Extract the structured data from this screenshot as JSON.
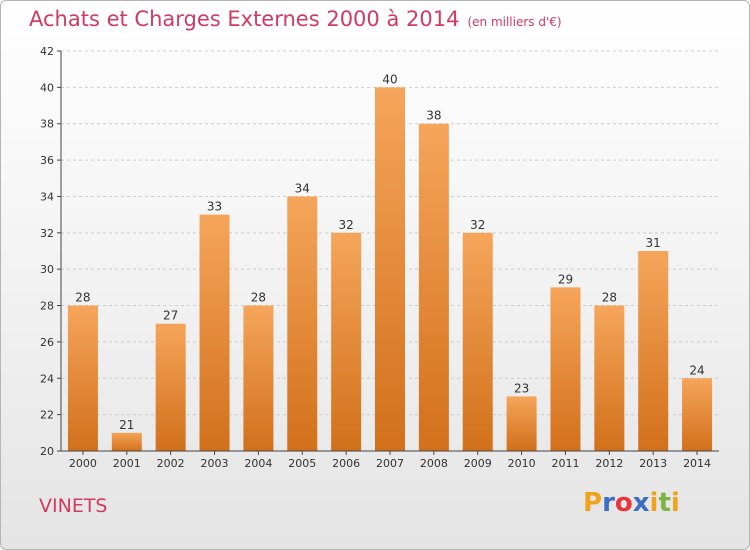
{
  "chart_data": {
    "type": "bar",
    "title": "Achats et Charges Externes 2000 à 2014",
    "subtitle": "(en milliers d'€)",
    "categories": [
      "2000",
      "2001",
      "2002",
      "2003",
      "2004",
      "2005",
      "2006",
      "2007",
      "2008",
      "2009",
      "2010",
      "2011",
      "2012",
      "2013",
      "2014"
    ],
    "values": [
      28,
      21,
      27,
      33,
      28,
      34,
      32,
      40,
      38,
      32,
      23,
      29,
      28,
      31,
      24
    ],
    "ylim": [
      20,
      42
    ],
    "yticks": [
      20,
      22,
      24,
      26,
      28,
      30,
      32,
      34,
      36,
      38,
      40,
      42
    ],
    "grid": true,
    "bar_color_top": "#f5a55a",
    "bar_color_bottom": "#d2701b"
  },
  "commune": "VINETS",
  "logo": {
    "text": "Proxiti",
    "letter_colors": [
      "#f0a21a",
      "#3a6fc4",
      "#e7343d",
      "#3a6fc4",
      "#f0a21a",
      "#7cb342",
      "#f0a21a"
    ]
  },
  "colors": {
    "title": "#d13a63",
    "grid": "#cccccc",
    "axis": "#444444"
  }
}
